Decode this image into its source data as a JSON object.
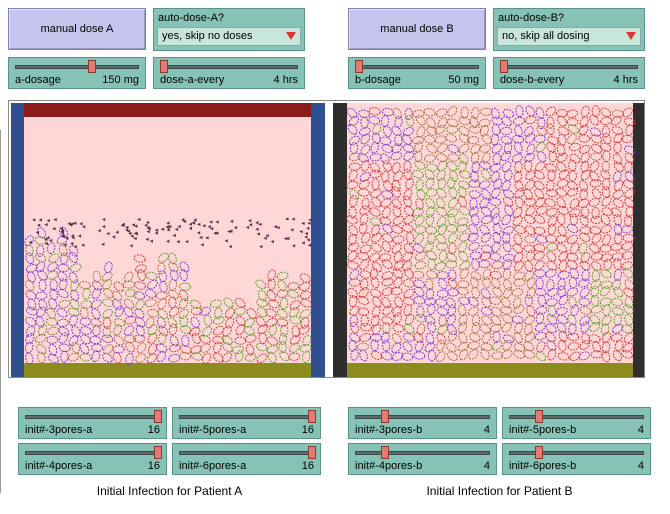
{
  "patient_a": {
    "manual_dose_button": "manual dose A",
    "auto_dose": {
      "label": "auto-dose-A?",
      "value": "yes, skip no doses"
    },
    "dosage": {
      "name": "a-dosage",
      "value": "150",
      "unit": "mg",
      "fraction": 0.62
    },
    "dose_every": {
      "name": "dose-a-every",
      "value": "4",
      "unit": "hrs",
      "fraction": 0.0
    },
    "init_sliders": [
      {
        "name": "init#-3pores-a",
        "value": "16",
        "fraction": 1.0
      },
      {
        "name": "init#-5pores-a",
        "value": "16",
        "fraction": 1.0
      },
      {
        "name": "init#-4pores-a",
        "value": "16",
        "fraction": 1.0
      },
      {
        "name": "init#-6pores-a",
        "value": "16",
        "fraction": 1.0
      }
    ],
    "caption": "Initial Infection for Patient A"
  },
  "patient_b": {
    "manual_dose_button": "manual dose B",
    "auto_dose": {
      "label": "auto-dose-B?",
      "value": "no, skip all dosing"
    },
    "dosage": {
      "name": "b-dosage",
      "value": "50",
      "unit": "mg",
      "fraction": 0.0
    },
    "dose_every": {
      "name": "dose-b-every",
      "value": "4",
      "unit": "hrs",
      "fraction": 0.0
    },
    "init_sliders": [
      {
        "name": "init#-3pores-b",
        "value": "4",
        "fraction": 0.2
      },
      {
        "name": "init#-5pores-b",
        "value": "4",
        "fraction": 0.2
      },
      {
        "name": "init#-4pores-b",
        "value": "4",
        "fraction": 0.2
      },
      {
        "name": "init#-6pores-b",
        "value": "4",
        "fraction": 0.2
      }
    ],
    "caption": "Initial Infection for Patient B"
  },
  "colors": {
    "view_bg": "#ffd7d7",
    "wall_a": "#2f4f8f",
    "wall_b": "#2e2e2e",
    "top_bar_a": "#8b1a1a",
    "bottom_bar": "#8c8c1e",
    "cell_purple": "#7b3fd1",
    "cell_green": "#5aa02a",
    "cell_red": "#d43a3a",
    "cell_brown": "#b06a40"
  }
}
